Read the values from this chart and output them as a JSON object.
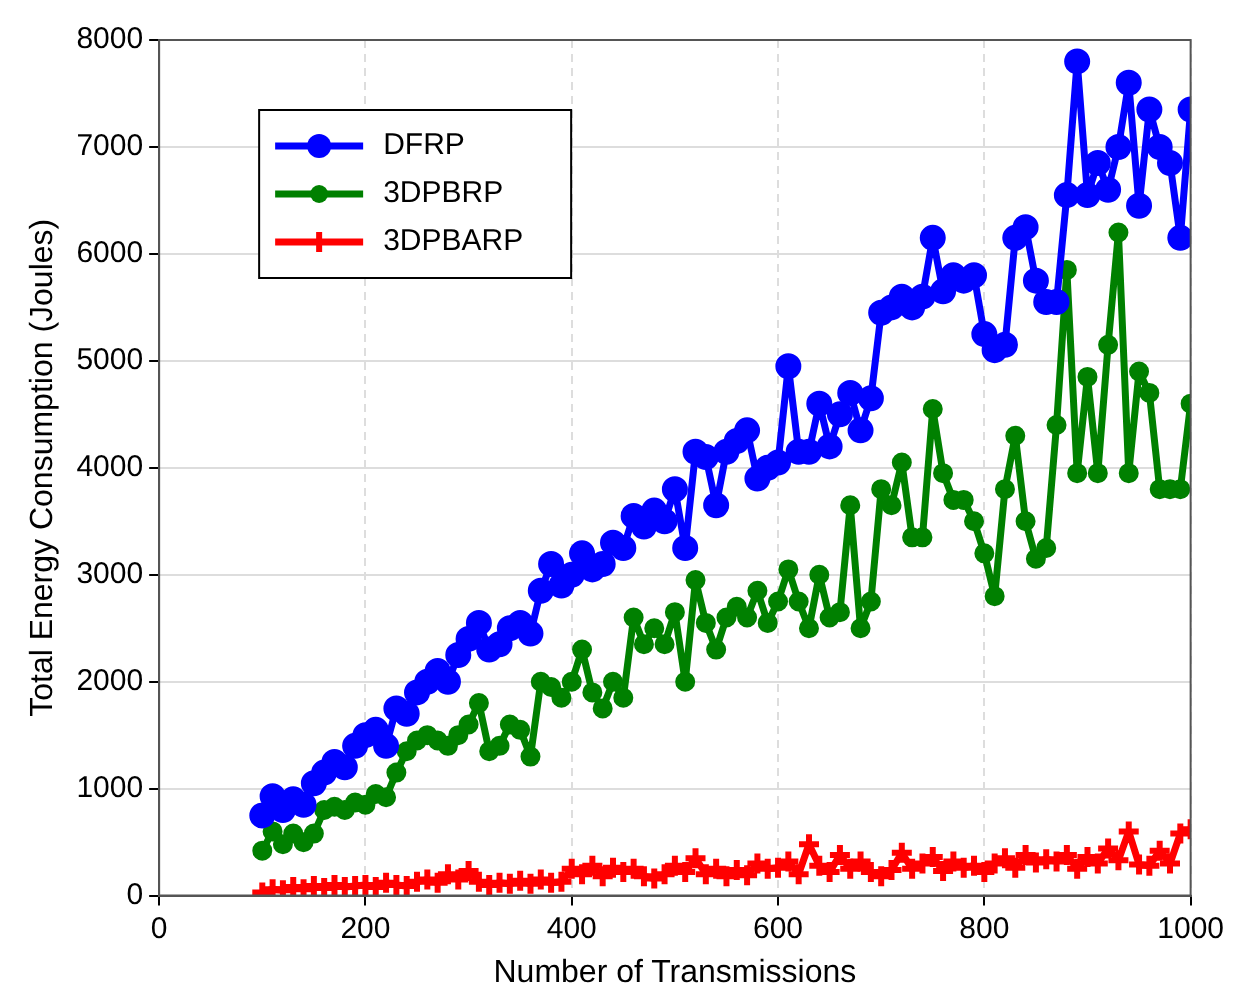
{
  "chart_data": {
    "type": "line",
    "xlabel": "Number of Transmissions",
    "ylabel": "Total Energy Consumption (Joules)",
    "x": [
      100,
      110,
      120,
      130,
      140,
      150,
      160,
      170,
      180,
      190,
      200,
      210,
      220,
      230,
      240,
      250,
      260,
      270,
      280,
      290,
      300,
      310,
      320,
      330,
      340,
      350,
      360,
      370,
      380,
      390,
      400,
      410,
      420,
      430,
      440,
      450,
      460,
      470,
      480,
      490,
      500,
      510,
      520,
      530,
      540,
      550,
      560,
      570,
      580,
      590,
      600,
      610,
      620,
      630,
      640,
      650,
      660,
      670,
      680,
      690,
      700,
      710,
      720,
      730,
      740,
      750,
      760,
      770,
      780,
      790,
      800,
      810,
      820,
      830,
      840,
      850,
      860,
      870,
      880,
      890,
      900,
      910,
      920,
      930,
      940,
      950,
      960,
      970,
      980,
      990,
      1000
    ],
    "series": [
      {
        "name": "DFRP",
        "color": "#0000ff",
        "marker": "circle",
        "values": [
          750,
          930,
          800,
          900,
          850,
          1050,
          1150,
          1250,
          1200,
          1400,
          1500,
          1550,
          1400,
          1750,
          1700,
          1900,
          2000,
          2100,
          2000,
          2250,
          2400,
          2550,
          2300,
          2350,
          2500,
          2550,
          2450,
          2850,
          3100,
          2900,
          3000,
          3200,
          3050,
          3100,
          3300,
          3250,
          3550,
          3450,
          3600,
          3500,
          3800,
          3250,
          4150,
          4100,
          3650,
          4150,
          4250,
          4350,
          3900,
          4000,
          4050,
          4950,
          4150,
          4150,
          4600,
          4200,
          4500,
          4700,
          4350,
          4650,
          5450,
          5500,
          5600,
          5500,
          5600,
          6150,
          5650,
          5800,
          5750,
          5800,
          5250,
          5100,
          5150,
          6150,
          6250,
          5750,
          5550,
          5550,
          6550,
          7800,
          6550,
          6850,
          6600,
          7000,
          7600,
          6450,
          7350,
          7000,
          6850,
          6150,
          7350
        ]
      },
      {
        "name": "3DPBRP",
        "color": "#008000",
        "marker": "circle",
        "values": [
          420,
          600,
          480,
          580,
          500,
          580,
          800,
          830,
          800,
          870,
          850,
          950,
          920,
          1150,
          1350,
          1450,
          1500,
          1450,
          1400,
          1500,
          1600,
          1800,
          1350,
          1400,
          1600,
          1550,
          1300,
          2000,
          1950,
          1850,
          2000,
          2300,
          1900,
          1750,
          2000,
          1850,
          2600,
          2350,
          2500,
          2350,
          2650,
          2000,
          2950,
          2550,
          2300,
          2600,
          2700,
          2600,
          2850,
          2550,
          2750,
          3050,
          2750,
          2500,
          3000,
          2600,
          2650,
          3650,
          2500,
          2750,
          3800,
          3650,
          4050,
          3350,
          3350,
          4550,
          3950,
          3700,
          3700,
          3500,
          3200,
          2800,
          3800,
          4300,
          3500,
          3150,
          3250,
          4400,
          5850,
          3950,
          4850,
          3950,
          5150,
          6200,
          3950,
          4900,
          4700,
          3800,
          3800,
          3800,
          4600
        ]
      },
      {
        "name": "3DPBARP",
        "color": "#ff0000",
        "marker": "cross",
        "values": [
          30,
          60,
          50,
          80,
          60,
          90,
          70,
          100,
          80,
          90,
          100,
          80,
          120,
          100,
          90,
          130,
          150,
          120,
          200,
          150,
          230,
          130,
          100,
          120,
          110,
          140,
          110,
          150,
          120,
          130,
          250,
          200,
          280,
          180,
          260,
          220,
          250,
          180,
          160,
          200,
          280,
          220,
          350,
          200,
          250,
          180,
          240,
          190,
          300,
          250,
          260,
          320,
          200,
          480,
          280,
          220,
          380,
          250,
          320,
          220,
          180,
          240,
          400,
          250,
          300,
          360,
          230,
          320,
          260,
          280,
          220,
          300,
          350,
          260,
          380,
          310,
          340,
          320,
          380,
          250,
          360,
          300,
          440,
          330,
          600,
          290,
          280,
          420,
          300,
          580,
          620
        ]
      }
    ],
    "xlim": [
      0,
      1000
    ],
    "xticks": [
      0,
      200,
      400,
      600,
      800,
      1000
    ],
    "ylim": [
      0,
      8000
    ],
    "yticks": [
      0,
      1000,
      2000,
      3000,
      4000,
      5000,
      6000,
      7000,
      8000
    ],
    "grid": true,
    "legend": "top left",
    "line_style": "solid"
  }
}
